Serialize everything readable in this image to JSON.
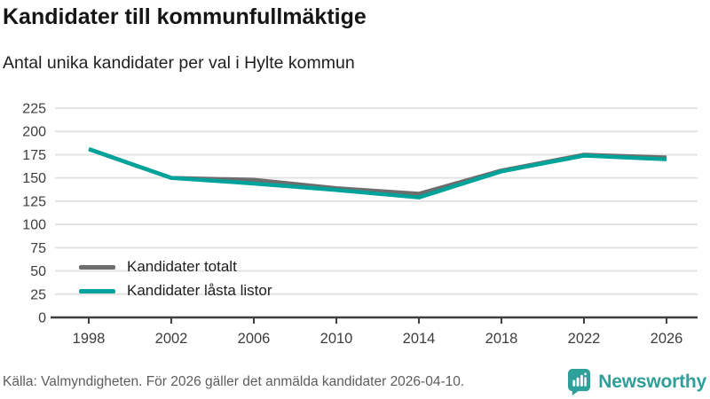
{
  "header": {
    "title": "Kandidater till kommunfullmäktige",
    "subtitle": "Antal unika kandidater per val i Hylte kommun"
  },
  "chart_data": {
    "type": "line",
    "categories": [
      "1998",
      "2002",
      "2006",
      "2010",
      "2014",
      "2018",
      "2022",
      "2026"
    ],
    "series": [
      {
        "name": "Kandidater totalt",
        "color": "#6d6d6d",
        "values": [
          181,
          150,
          148,
          139,
          133,
          158,
          175,
          172
        ]
      },
      {
        "name": "Kandidater låsta listor",
        "color": "#00a39a",
        "values": [
          181,
          150,
          144,
          137,
          129,
          157,
          174,
          170
        ]
      }
    ],
    "title": "Kandidater till kommunfullmäktige",
    "xlabel": "",
    "ylabel": "",
    "ylim": [
      0,
      225
    ],
    "yticks": [
      0,
      25,
      50,
      75,
      100,
      125,
      150,
      175,
      200,
      225
    ],
    "grid": "horizontal",
    "legend_position": "inside-bottom-left",
    "gridline_color": "#e3e3e3",
    "axis_color": "#3f3f3f",
    "tick_label_color": "#3d3d3d"
  },
  "footer": {
    "source": "Källa: Valmyndigheten. För 2026 gäller det anmälda kandidater 2026-04-10.",
    "brand_name": "Newsworthy",
    "brand_color": "#2e9f99"
  }
}
